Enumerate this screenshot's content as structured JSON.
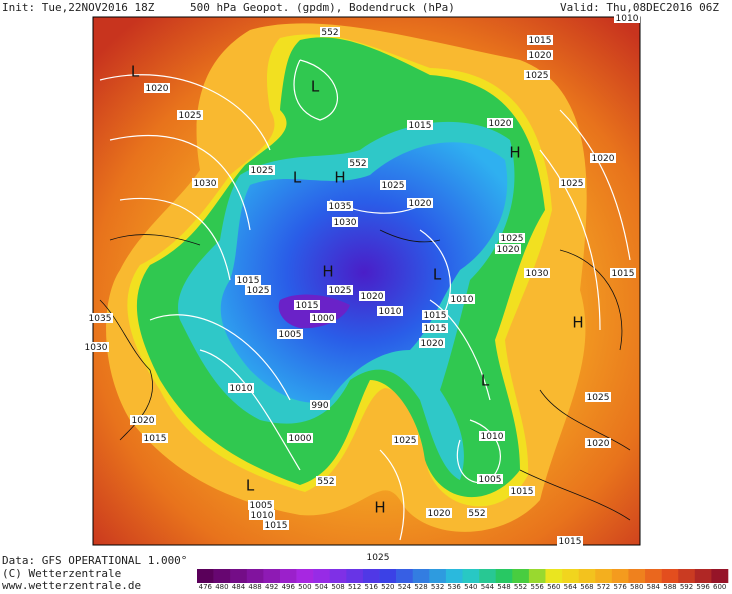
{
  "header": {
    "init": "Init: Tue,22NOV2016 18Z",
    "title": "500 hPa Geopot. (gpdm), Bodendruck (hPa)",
    "valid": "Valid: Thu,08DEC2016 06Z"
  },
  "map_labels": [
    "L",
    1020,
    1025,
    1030,
    "L",
    552,
    1010,
    1015,
    1020,
    1025,
    1015,
    1020,
    "H",
    1020,
    1025,
    1025,
    "L",
    "H",
    1035,
    1030,
    1025,
    1020,
    552,
    1025,
    1020,
    1030,
    1015,
    "H",
    "L",
    1025,
    1020,
    1015,
    1025,
    1015,
    1000,
    1010,
    1010,
    1015,
    1015,
    1020,
    "H",
    1035,
    1030,
    1005,
    1010,
    "L",
    990,
    1025,
    1020,
    1015,
    1000,
    1025,
    1010,
    1020,
    "L",
    552,
    1005,
    1015,
    1005,
    1010,
    1015,
    "H",
    1020,
    552,
    1025,
    1015
  ],
  "footer": {
    "data": "Data: GFS OPERATIONAL 1.000°",
    "copyright": "(C) Wetterzentrale",
    "url": "www.wetterzentrale.de"
  },
  "colorbar": {
    "labels": [
      476,
      480,
      484,
      488,
      492,
      496,
      500,
      504,
      508,
      512,
      516,
      520,
      524,
      528,
      532,
      536,
      540,
      544,
      548,
      552,
      556,
      560,
      564,
      568,
      572,
      576,
      580,
      584,
      588,
      592,
      596,
      600
    ]
  }
}
